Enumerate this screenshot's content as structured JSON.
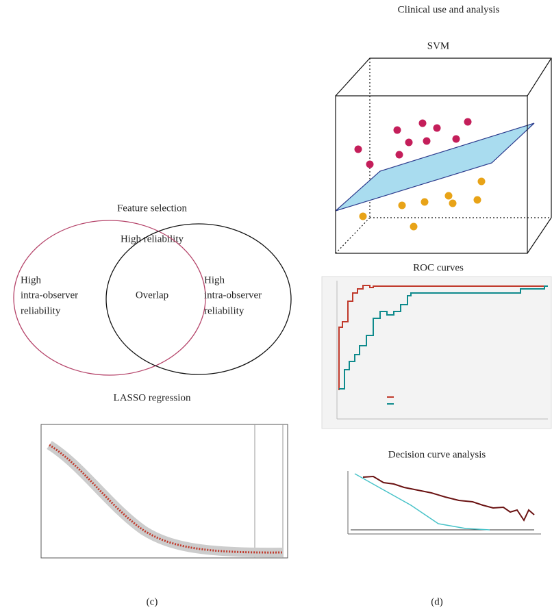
{
  "left_panel": {
    "heading": "Feature selection",
    "venn_title": "High reliability",
    "venn_left": [
      "High",
      "intra-observer",
      "reliability"
    ],
    "venn_center": "Overlap",
    "venn_right": [
      "High",
      "intra-observer",
      "reliability"
    ],
    "lasso_title": "LASSO regression",
    "caption": "(c)"
  },
  "right_panel": {
    "heading": "Clinical use and analysis",
    "svm_title": "SVM",
    "roc_title": "ROC curves",
    "dca_title": "Decision curve analysis",
    "caption": "(d)"
  }
}
